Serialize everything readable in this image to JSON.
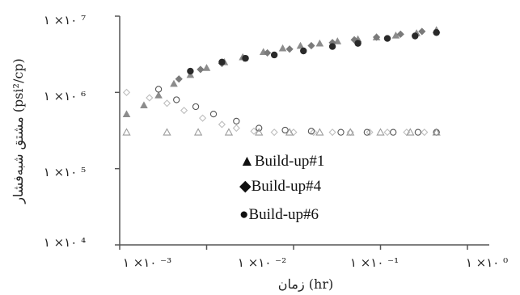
{
  "chart_data": {
    "type": "scatter",
    "title": "",
    "xlabel": "زمان (hr)",
    "ylabel": "مشتق شبه‌فشار (psi²/cp)",
    "xscale": "log",
    "yscale": "log",
    "xlim": [
      0.001,
      10
    ],
    "ylim": [
      10000,
      10000000
    ],
    "grid": false,
    "legend_position": "center",
    "x_tick_labels": [
      "۱ ×۱۰ ⁻³",
      "۱ ×۱۰ ⁻²",
      "۱ ×۱۰ ⁻¹",
      "۱ ×۱۰ ⁰"
    ],
    "y_tick_labels": [
      "۱ ×۱۰ ⁴",
      "۱ ×۱۰ ⁵",
      "۱ ×۱۰ ⁶",
      "۱ ×۱۰ ⁷"
    ],
    "series": [
      {
        "name": "Build-up#1",
        "marker": "triangle",
        "color": "#8c8c8c",
        "points": [
          [
            0.0012,
            520000
          ],
          [
            0.0019,
            680000
          ],
          [
            0.0028,
            920000
          ],
          [
            0.0042,
            1300000
          ],
          [
            0.0065,
            1700000
          ],
          [
            0.01,
            2100000
          ],
          [
            0.016,
            2500000
          ],
          [
            0.026,
            2900000
          ],
          [
            0.045,
            3400000
          ],
          [
            0.075,
            3800000
          ],
          [
            0.12,
            4100000
          ],
          [
            0.2,
            4400000
          ],
          [
            0.32,
            4700000
          ],
          [
            0.55,
            5000000
          ],
          [
            0.9,
            5300000
          ],
          [
            1.5,
            5600000
          ],
          [
            2.6,
            6000000
          ],
          [
            4.4,
            6600000
          ]
        ]
      },
      {
        "name": "Build-up#4",
        "marker": "diamond",
        "color": "#7a7a7a",
        "points": [
          [
            0.0048,
            1500000
          ],
          [
            0.0085,
            2000000
          ],
          [
            0.015,
            2400000
          ],
          [
            0.027,
            2800000
          ],
          [
            0.05,
            3300000
          ],
          [
            0.09,
            3700000
          ],
          [
            0.16,
            4100000
          ],
          [
            0.28,
            4500000
          ],
          [
            0.5,
            4900000
          ],
          [
            0.9,
            5300000
          ],
          [
            1.7,
            5800000
          ],
          [
            3.0,
            6300000
          ]
        ]
      },
      {
        "name": "Build-up#6",
        "marker": "circle",
        "color": "#2a2a2a",
        "points": [
          [
            0.0065,
            1900000
          ],
          [
            0.015,
            2500000
          ],
          [
            0.028,
            2800000
          ],
          [
            0.06,
            3100000
          ],
          [
            0.13,
            3500000
          ],
          [
            0.28,
            4000000
          ],
          [
            0.55,
            4400000
          ],
          [
            1.2,
            5100000
          ],
          [
            2.5,
            5500000
          ],
          [
            4.4,
            6100000
          ]
        ]
      },
      {
        "name": "open diamonds",
        "marker": "diamond-open",
        "color": "#bdbdbd",
        "points": [
          [
            0.0012,
            1000000
          ],
          [
            0.0022,
            850000
          ],
          [
            0.0035,
            720000
          ],
          [
            0.0055,
            580000
          ],
          [
            0.009,
            460000
          ],
          [
            0.015,
            380000
          ],
          [
            0.022,
            340000
          ],
          [
            0.035,
            310000
          ],
          [
            0.06,
            300000
          ],
          [
            0.1,
            300000
          ],
          [
            0.17,
            300000
          ],
          [
            0.28,
            300000
          ],
          [
            0.45,
            300000
          ],
          [
            0.75,
            300000
          ],
          [
            1.2,
            300000
          ],
          [
            2.0,
            300000
          ],
          [
            3.2,
            300000
          ],
          [
            4.4,
            300000
          ]
        ]
      },
      {
        "name": "open circles",
        "marker": "circle-open",
        "color": "#555555",
        "points": [
          [
            0.0028,
            1100000
          ],
          [
            0.0045,
            800000
          ],
          [
            0.0075,
            650000
          ],
          [
            0.012,
            520000
          ],
          [
            0.022,
            420000
          ],
          [
            0.04,
            340000
          ],
          [
            0.08,
            320000
          ],
          [
            0.16,
            310000
          ],
          [
            0.35,
            300000
          ],
          [
            0.7,
            300000
          ],
          [
            1.4,
            300000
          ],
          [
            2.7,
            300000
          ],
          [
            4.4,
            300000
          ]
        ]
      },
      {
        "name": "open triangles",
        "marker": "triangle-open",
        "color": "#9a9a9a",
        "points": [
          [
            0.0012,
            300000
          ],
          [
            0.0035,
            300000
          ],
          [
            0.008,
            300000
          ],
          [
            0.018,
            300000
          ],
          [
            0.04,
            300000
          ],
          [
            0.09,
            300000
          ],
          [
            0.2,
            300000
          ],
          [
            0.45,
            300000
          ],
          [
            1.0,
            300000
          ],
          [
            2.2,
            300000
          ],
          [
            4.4,
            300000
          ]
        ]
      }
    ],
    "legend_entries": [
      {
        "symbol": "▲",
        "label": "Build-up#1"
      },
      {
        "symbol": "◆",
        "label": "Build-up#4"
      },
      {
        "symbol": "●",
        "label": "Build-up#6"
      }
    ]
  }
}
